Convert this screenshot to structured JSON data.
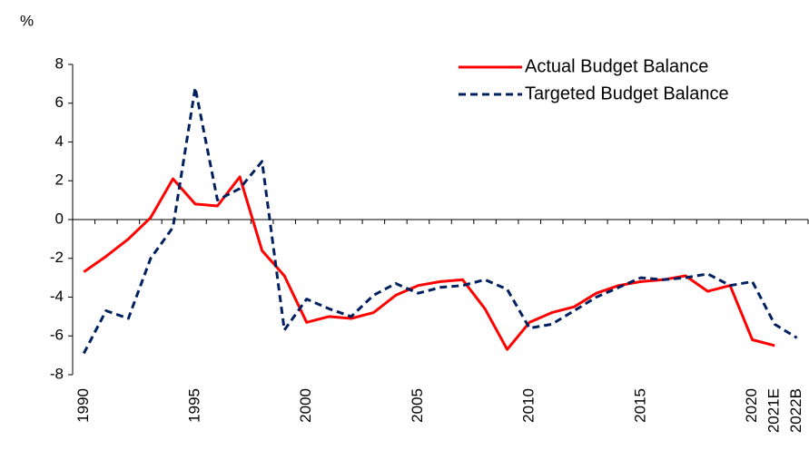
{
  "chart_data": {
    "type": "line",
    "y_axis_label": "%",
    "categories": [
      "1990",
      null,
      null,
      null,
      null,
      "1995",
      null,
      null,
      null,
      null,
      "2000",
      null,
      null,
      null,
      null,
      "2005",
      null,
      null,
      null,
      null,
      "2010",
      null,
      null,
      null,
      null,
      "2015",
      null,
      null,
      null,
      null,
      "2020",
      "2021E",
      "2022B"
    ],
    "series": [
      {
        "name": "Actual Budget Balance",
        "color": "#ff0000",
        "line_style": "solid",
        "values": [
          -2.7,
          -1.9,
          -1.0,
          0.1,
          2.1,
          0.8,
          0.7,
          2.2,
          -1.6,
          -2.9,
          -5.3,
          -5.0,
          -5.1,
          -4.8,
          -3.9,
          -3.4,
          -3.2,
          -3.1,
          -4.6,
          -6.7,
          -5.3,
          -4.8,
          -4.5,
          -3.8,
          -3.4,
          -3.2,
          -3.1,
          -2.9,
          -3.7,
          -3.4,
          -6.2,
          -6.5,
          null
        ]
      },
      {
        "name": "Targeted Budget Balance",
        "color": "#002060",
        "line_style": "dashed",
        "values": [
          -6.9,
          -4.7,
          -5.1,
          -2.0,
          -0.4,
          6.8,
          1.0,
          1.6,
          3.0,
          -5.7,
          -4.1,
          -4.6,
          -5.0,
          -3.9,
          -3.3,
          -3.8,
          -3.5,
          -3.4,
          -3.1,
          -3.6,
          -5.6,
          -5.4,
          -4.7,
          -4.0,
          -3.5,
          -3.0,
          -3.1,
          -3.0,
          -2.8,
          -3.4,
          -3.2,
          -5.4,
          -6.1
        ]
      }
    ],
    "ylim": [
      -8,
      8
    ],
    "yticks": [
      -8,
      -6,
      -4,
      -2,
      0,
      2,
      4,
      6,
      8
    ],
    "grid": false,
    "legend": "upper right"
  }
}
